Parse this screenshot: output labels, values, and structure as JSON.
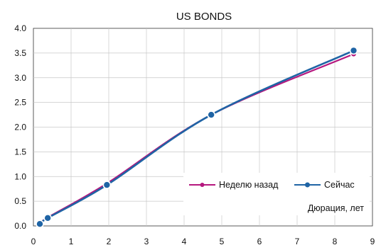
{
  "chart_data": {
    "type": "line",
    "title": "US BONDS",
    "xlabel": "Дюрация, лет",
    "ylabel": "",
    "xlim": [
      0,
      9
    ],
    "ylim": [
      0,
      4
    ],
    "xticks": [
      "0",
      "1",
      "2",
      "3",
      "4",
      "5",
      "6",
      "7",
      "8",
      "9"
    ],
    "yticks": [
      "0.0",
      "0.5",
      "1.0",
      "1.5",
      "2.0",
      "2.5",
      "3.0",
      "3.5",
      "4.0"
    ],
    "grid": true,
    "legend_position": "bottom-right",
    "series": [
      {
        "name": "Неделю назад",
        "color": "#b5177e",
        "x": [
          0.17,
          0.38,
          1.95,
          4.72,
          8.5
        ],
        "y": [
          0.04,
          0.17,
          0.86,
          2.25,
          3.48
        ]
      },
      {
        "name": "Сейчас",
        "color": "#1f64a5",
        "x": [
          0.17,
          0.38,
          1.95,
          4.72,
          8.5
        ],
        "y": [
          0.04,
          0.16,
          0.83,
          2.25,
          3.55
        ]
      }
    ]
  }
}
